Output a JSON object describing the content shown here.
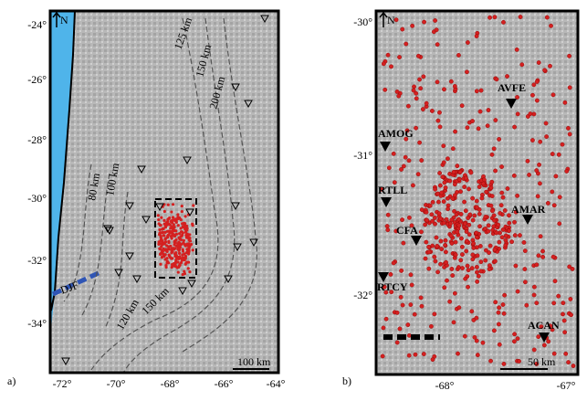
{
  "panel_a": {
    "label": "a)",
    "north": "N",
    "x_ticks": [
      "-72°",
      "-70°",
      "-68°",
      "-66°",
      "-64°"
    ],
    "y_ticks": [
      "-24°",
      "-26°",
      "-28°",
      "-30°",
      "-32°",
      "-34°"
    ],
    "contours": [
      "125 km",
      "150 km",
      "200 km",
      "80 km",
      "100 km",
      "120 km",
      "150 km"
    ],
    "fault": "DJF",
    "scale": "100 km"
  },
  "panel_b": {
    "label": "b)",
    "north": "N",
    "x_ticks": [
      "-68°",
      "-67°"
    ],
    "y_ticks": [
      "-30°",
      "-31°",
      "-32°"
    ],
    "stations": [
      "AVFE",
      "AMOG",
      "RTLL",
      "AMAR",
      "CFA",
      "RTCY",
      "ACAN"
    ],
    "scale": "50 km"
  }
}
